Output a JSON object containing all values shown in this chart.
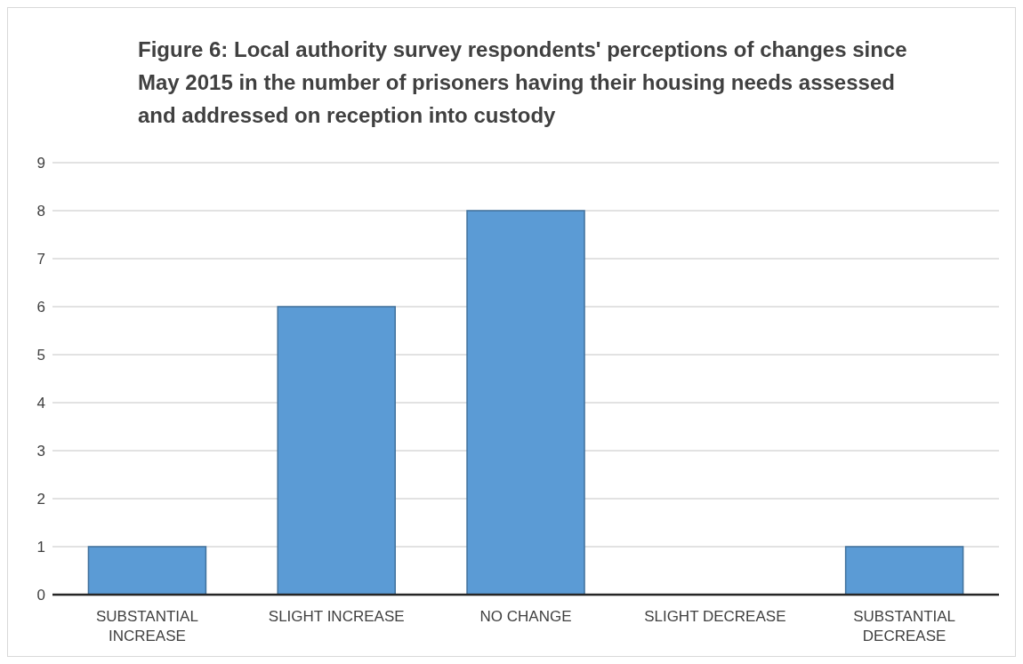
{
  "chart_data": {
    "type": "bar",
    "title": "Figure 6: Local authority survey respondents' perceptions of changes since May 2015 in the number of prisoners having their housing needs assessed and addressed on reception into custody",
    "categories": [
      "SUBSTANTIAL INCREASE",
      "SLIGHT INCREASE",
      "NO CHANGE",
      "SLIGHT DECREASE",
      "SUBSTANTIAL DECREASE"
    ],
    "values": [
      1,
      6,
      8,
      0,
      1
    ],
    "color": "#5b9bd5",
    "ylim": [
      0,
      9
    ],
    "yticks": [
      0,
      1,
      2,
      3,
      4,
      5,
      6,
      7,
      8,
      9
    ],
    "grid": "y"
  }
}
